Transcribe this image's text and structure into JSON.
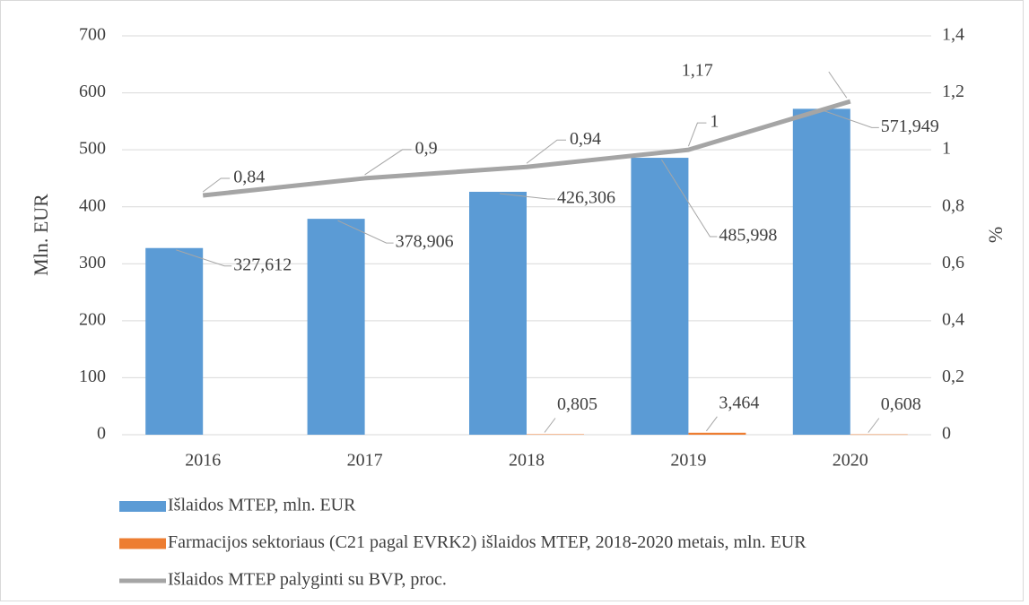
{
  "chart_data": {
    "type": "bar-line",
    "categories": [
      "2016",
      "2017",
      "2018",
      "2019",
      "2020"
    ],
    "ylabel": "Mln. EUR",
    "y2label": "%",
    "ylim": [
      0,
      700
    ],
    "yticks": [
      0,
      100,
      200,
      300,
      400,
      500,
      600,
      700
    ],
    "y2lim": [
      0,
      1.4
    ],
    "y2ticks": [
      0,
      {
        "value": 0.2,
        "label": "0,2"
      },
      {
        "value": 0.4,
        "label": "0,4"
      },
      {
        "value": 0.6,
        "label": "0,6"
      },
      {
        "value": 0.8,
        "label": "0,8"
      },
      1,
      {
        "value": 1.2,
        "label": "1,2"
      },
      {
        "value": 1.4,
        "label": "1,4"
      }
    ],
    "grid": true,
    "legend": "bottom",
    "series": [
      {
        "name": "Išlaidos MTEP, mln. EUR",
        "type": "bar",
        "color": "#5b9bd5",
        "values": [
          327.612,
          378.906,
          426.306,
          485.998,
          571.949
        ],
        "value_labels": [
          "327,612",
          "378,906",
          "426,306",
          "485,998",
          "571,949"
        ]
      },
      {
        "name": "Farmacijos sektoriaus (C21 pagal EVRK2) išlaidos MTEP, 2018-2020 metais, mln. EUR",
        "type": "bar",
        "color": "#ed7d31",
        "values": [
          null,
          null,
          0.805,
          3.464,
          0.608
        ],
        "value_labels": [
          null,
          null,
          "0,805",
          "3,464",
          "0,608"
        ]
      },
      {
        "name": "Išlaidos MTEP palyginti su BVP, proc.",
        "type": "line",
        "axis": "y2",
        "color": "#a5a5a5",
        "values": [
          0.84,
          0.9,
          0.94,
          1,
          1.17
        ],
        "value_labels": [
          "0,84",
          "0,9",
          "0,94",
          "1",
          "1,17"
        ]
      }
    ]
  }
}
